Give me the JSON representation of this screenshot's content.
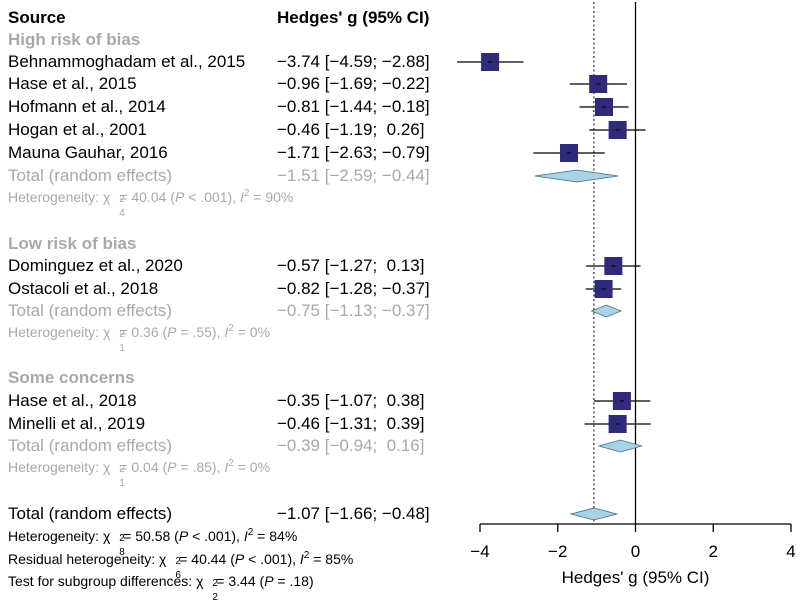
{
  "chart_data": {
    "type": "forest",
    "header": {
      "source": "Source",
      "estimate": "Hedges' g (95% CI)"
    },
    "x_axis": {
      "label": "Hedges' g (95% CI)",
      "min": -4,
      "max": 4,
      "ticks": [
        -4,
        -2,
        0,
        2,
        4
      ],
      "tick_labels": [
        "−4",
        "−2",
        "0",
        "2",
        "4"
      ]
    },
    "reference_line": 0,
    "overall_line": -1.07,
    "colors": {
      "box": "#2f2a7a",
      "diamond": "#a6d4e6",
      "group_label": "#a9a9a9"
    },
    "groups": [
      {
        "name": "High risk of bias",
        "studies": [
          {
            "label": "Behnammoghadam et al., 2015",
            "g": -3.74,
            "lo": -4.59,
            "hi": -2.88,
            "text": "−3.74 [−4.59; −2.88]"
          },
          {
            "label": "Hase et al., 2015",
            "g": -0.96,
            "lo": -1.69,
            "hi": -0.22,
            "text": "−0.96 [−1.69; −0.22]"
          },
          {
            "label": "Hofmann et al., 2014",
            "g": -0.81,
            "lo": -1.44,
            "hi": -0.18,
            "text": "−0.81 [−1.44; −0.18]"
          },
          {
            "label": "Hogan et al., 2001",
            "g": -0.46,
            "lo": -1.19,
            "hi": 0.26,
            "text": "−0.46 [−1.19;  0.26]"
          },
          {
            "label": "Mauna Gauhar, 2016",
            "g": -1.71,
            "lo": -2.63,
            "hi": -0.79,
            "text": "−1.71 [−2.63; −0.79]"
          }
        ],
        "total": {
          "label": "Total (random effects)",
          "g": -1.51,
          "lo": -2.59,
          "hi": -0.44,
          "text": "−1.51 [−2.59; −0.44]"
        },
        "heterogeneity": {
          "prefix": "Heterogeneity: χ",
          "df": "4",
          "q": "= 40.04 (",
          "p": "P",
          "p_text": " < .001), ",
          "i": "I",
          "i_text": " = 90%"
        }
      },
      {
        "name": "Low risk of bias",
        "studies": [
          {
            "label": "Dominguez et al., 2020",
            "g": -0.57,
            "lo": -1.27,
            "hi": 0.13,
            "text": "−0.57 [−1.27;  0.13]"
          },
          {
            "label": "Ostacoli et al., 2018",
            "g": -0.82,
            "lo": -1.28,
            "hi": -0.37,
            "text": "−0.82 [−1.28; −0.37]"
          }
        ],
        "total": {
          "label": "Total (random effects)",
          "g": -0.75,
          "lo": -1.13,
          "hi": -0.37,
          "text": "−0.75 [−1.13; −0.37]"
        },
        "heterogeneity": {
          "prefix": "Heterogeneity: χ",
          "df": "1",
          "q": "= 0.36 (",
          "p": "P",
          "p_text": " = .55), ",
          "i": "I",
          "i_text": " = 0%"
        }
      },
      {
        "name": "Some concerns",
        "studies": [
          {
            "label": "Hase et al., 2018",
            "g": -0.35,
            "lo": -1.07,
            "hi": 0.38,
            "text": "−0.35 [−1.07;  0.38]"
          },
          {
            "label": "Minelli et al., 2019",
            "g": -0.46,
            "lo": -1.31,
            "hi": 0.39,
            "text": "−0.46 [−1.31;  0.39]"
          }
        ],
        "total": {
          "label": "Total (random effects)",
          "g": -0.39,
          "lo": -0.94,
          "hi": 0.16,
          "text": "−0.39 [−0.94;  0.16]"
        },
        "heterogeneity": {
          "prefix": "Heterogeneity: χ",
          "df": "1",
          "q": "= 0.04 (",
          "p": "P",
          "p_text": " = .85), ",
          "i": "I",
          "i_text": " = 0%"
        }
      }
    ],
    "overall": {
      "label": "Total (random effects)",
      "g": -1.07,
      "lo": -1.66,
      "hi": -0.48,
      "text": "−1.07 [−1.66; −0.48]"
    },
    "footer": {
      "heterogeneity": {
        "prefix": "Heterogeneity: χ",
        "df": "8",
        "q": " = 50.58 (",
        "p": "P",
        "p_text": " < .001), ",
        "i": "I",
        "i_text": " = 84%"
      },
      "residual": {
        "prefix": "Residual heterogeneity: χ",
        "df": "6",
        "q": " = 40.44 (",
        "p": "P",
        "p_text": " < .001), ",
        "i": "I",
        "i_text": " = 85%"
      },
      "subgroup": {
        "prefix": "Test for subgroup differences: χ",
        "df": "2",
        "q": " = 3.44 (",
        "p": "P",
        "p_text": " = .18)"
      }
    }
  }
}
